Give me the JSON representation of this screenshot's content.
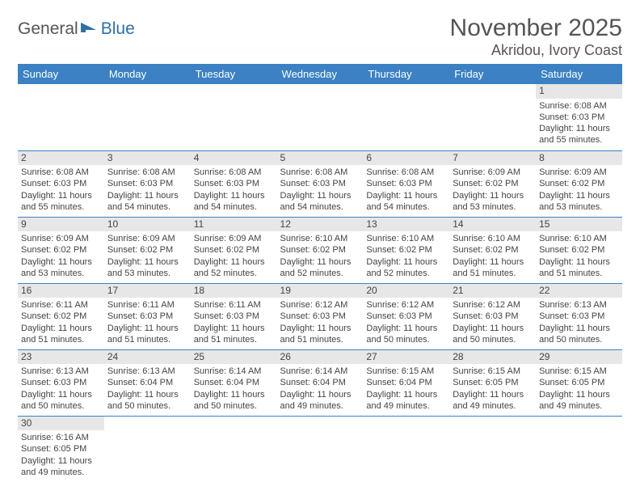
{
  "logo": {
    "general": "General",
    "blue": "Blue"
  },
  "header": {
    "title": "November 2025",
    "location": "Akridou, Ivory Coast"
  },
  "colors": {
    "header_bg": "#3b81c3",
    "header_text": "#ffffff",
    "daynum_bg": "#e7e7e7",
    "rule": "#3b81c3",
    "body_text": "#444444",
    "logo_general": "#555555",
    "logo_blue": "#2f6fa8"
  },
  "weekdays": [
    "Sunday",
    "Monday",
    "Tuesday",
    "Wednesday",
    "Thursday",
    "Friday",
    "Saturday"
  ],
  "weeks": [
    [
      null,
      null,
      null,
      null,
      null,
      null,
      {
        "n": "1",
        "sr": "Sunrise: 6:08 AM",
        "ss": "Sunset: 6:03 PM",
        "dl": "Daylight: 11 hours and 55 minutes."
      }
    ],
    [
      {
        "n": "2",
        "sr": "Sunrise: 6:08 AM",
        "ss": "Sunset: 6:03 PM",
        "dl": "Daylight: 11 hours and 55 minutes."
      },
      {
        "n": "3",
        "sr": "Sunrise: 6:08 AM",
        "ss": "Sunset: 6:03 PM",
        "dl": "Daylight: 11 hours and 54 minutes."
      },
      {
        "n": "4",
        "sr": "Sunrise: 6:08 AM",
        "ss": "Sunset: 6:03 PM",
        "dl": "Daylight: 11 hours and 54 minutes."
      },
      {
        "n": "5",
        "sr": "Sunrise: 6:08 AM",
        "ss": "Sunset: 6:03 PM",
        "dl": "Daylight: 11 hours and 54 minutes."
      },
      {
        "n": "6",
        "sr": "Sunrise: 6:08 AM",
        "ss": "Sunset: 6:03 PM",
        "dl": "Daylight: 11 hours and 54 minutes."
      },
      {
        "n": "7",
        "sr": "Sunrise: 6:09 AM",
        "ss": "Sunset: 6:02 PM",
        "dl": "Daylight: 11 hours and 53 minutes."
      },
      {
        "n": "8",
        "sr": "Sunrise: 6:09 AM",
        "ss": "Sunset: 6:02 PM",
        "dl": "Daylight: 11 hours and 53 minutes."
      }
    ],
    [
      {
        "n": "9",
        "sr": "Sunrise: 6:09 AM",
        "ss": "Sunset: 6:02 PM",
        "dl": "Daylight: 11 hours and 53 minutes."
      },
      {
        "n": "10",
        "sr": "Sunrise: 6:09 AM",
        "ss": "Sunset: 6:02 PM",
        "dl": "Daylight: 11 hours and 53 minutes."
      },
      {
        "n": "11",
        "sr": "Sunrise: 6:09 AM",
        "ss": "Sunset: 6:02 PM",
        "dl": "Daylight: 11 hours and 52 minutes."
      },
      {
        "n": "12",
        "sr": "Sunrise: 6:10 AM",
        "ss": "Sunset: 6:02 PM",
        "dl": "Daylight: 11 hours and 52 minutes."
      },
      {
        "n": "13",
        "sr": "Sunrise: 6:10 AM",
        "ss": "Sunset: 6:02 PM",
        "dl": "Daylight: 11 hours and 52 minutes."
      },
      {
        "n": "14",
        "sr": "Sunrise: 6:10 AM",
        "ss": "Sunset: 6:02 PM",
        "dl": "Daylight: 11 hours and 51 minutes."
      },
      {
        "n": "15",
        "sr": "Sunrise: 6:10 AM",
        "ss": "Sunset: 6:02 PM",
        "dl": "Daylight: 11 hours and 51 minutes."
      }
    ],
    [
      {
        "n": "16",
        "sr": "Sunrise: 6:11 AM",
        "ss": "Sunset: 6:02 PM",
        "dl": "Daylight: 11 hours and 51 minutes."
      },
      {
        "n": "17",
        "sr": "Sunrise: 6:11 AM",
        "ss": "Sunset: 6:03 PM",
        "dl": "Daylight: 11 hours and 51 minutes."
      },
      {
        "n": "18",
        "sr": "Sunrise: 6:11 AM",
        "ss": "Sunset: 6:03 PM",
        "dl": "Daylight: 11 hours and 51 minutes."
      },
      {
        "n": "19",
        "sr": "Sunrise: 6:12 AM",
        "ss": "Sunset: 6:03 PM",
        "dl": "Daylight: 11 hours and 51 minutes."
      },
      {
        "n": "20",
        "sr": "Sunrise: 6:12 AM",
        "ss": "Sunset: 6:03 PM",
        "dl": "Daylight: 11 hours and 50 minutes."
      },
      {
        "n": "21",
        "sr": "Sunrise: 6:12 AM",
        "ss": "Sunset: 6:03 PM",
        "dl": "Daylight: 11 hours and 50 minutes."
      },
      {
        "n": "22",
        "sr": "Sunrise: 6:13 AM",
        "ss": "Sunset: 6:03 PM",
        "dl": "Daylight: 11 hours and 50 minutes."
      }
    ],
    [
      {
        "n": "23",
        "sr": "Sunrise: 6:13 AM",
        "ss": "Sunset: 6:03 PM",
        "dl": "Daylight: 11 hours and 50 minutes."
      },
      {
        "n": "24",
        "sr": "Sunrise: 6:13 AM",
        "ss": "Sunset: 6:04 PM",
        "dl": "Daylight: 11 hours and 50 minutes."
      },
      {
        "n": "25",
        "sr": "Sunrise: 6:14 AM",
        "ss": "Sunset: 6:04 PM",
        "dl": "Daylight: 11 hours and 50 minutes."
      },
      {
        "n": "26",
        "sr": "Sunrise: 6:14 AM",
        "ss": "Sunset: 6:04 PM",
        "dl": "Daylight: 11 hours and 49 minutes."
      },
      {
        "n": "27",
        "sr": "Sunrise: 6:15 AM",
        "ss": "Sunset: 6:04 PM",
        "dl": "Daylight: 11 hours and 49 minutes."
      },
      {
        "n": "28",
        "sr": "Sunrise: 6:15 AM",
        "ss": "Sunset: 6:05 PM",
        "dl": "Daylight: 11 hours and 49 minutes."
      },
      {
        "n": "29",
        "sr": "Sunrise: 6:15 AM",
        "ss": "Sunset: 6:05 PM",
        "dl": "Daylight: 11 hours and 49 minutes."
      }
    ],
    [
      {
        "n": "30",
        "sr": "Sunrise: 6:16 AM",
        "ss": "Sunset: 6:05 PM",
        "dl": "Daylight: 11 hours and 49 minutes."
      },
      null,
      null,
      null,
      null,
      null,
      null
    ]
  ]
}
